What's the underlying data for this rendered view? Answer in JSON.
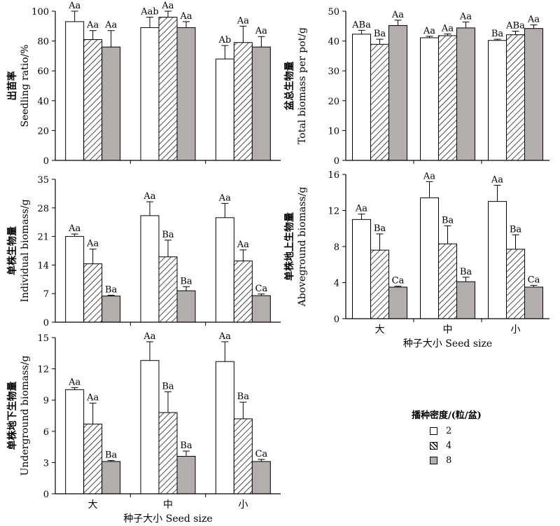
{
  "colors": {
    "d2": "#ffffff",
    "d4": "hatch",
    "d8": "#b3aeab",
    "axis": "#000000"
  },
  "legend": {
    "title": "播种密度/(粒/盆)",
    "items": [
      {
        "label": "2",
        "fill": "#ffffff"
      },
      {
        "label": "4",
        "fill": "hatch"
      },
      {
        "label": "8",
        "fill": "#b3aeab"
      }
    ]
  },
  "chart_data": [
    {
      "type": "bar",
      "ylabel_cn": "出苗率",
      "ylabel_en": "Seedling ratio/%",
      "ylim": [
        0,
        100
      ],
      "yticks": [
        "0",
        "20",
        "40",
        "60",
        "80",
        "100"
      ],
      "categories": [
        "大",
        "中",
        "小"
      ],
      "series": [
        {
          "name": "2",
          "values": [
            93,
            89,
            68
          ],
          "errors": [
            7,
            7,
            9
          ],
          "letters": [
            "Aa",
            "Aab",
            "Ab"
          ]
        },
        {
          "name": "4",
          "values": [
            81,
            96,
            79
          ],
          "errors": [
            6,
            4,
            11
          ],
          "letters": [
            "Aa",
            "Aa",
            "Aa"
          ]
        },
        {
          "name": "8",
          "values": [
            76,
            89,
            76
          ],
          "errors": [
            11,
            4,
            7
          ],
          "letters": [
            "Aa",
            "Aa",
            "Aa"
          ]
        }
      ]
    },
    {
      "type": "bar",
      "ylabel_cn": "盆总生物量",
      "ylabel_en": "Total biomass per pot/g",
      "ylim": [
        0,
        50
      ],
      "yticks": [
        "0",
        "10",
        "20",
        "30",
        "40",
        "50"
      ],
      "categories": [
        "大",
        "中",
        "小"
      ],
      "series": [
        {
          "name": "2",
          "values": [
            42.3,
            41.1,
            40.2
          ],
          "errors": [
            1.3,
            0.5,
            0.4
          ],
          "letters": [
            "ABa",
            "Aa",
            "Ba"
          ]
        },
        {
          "name": "4",
          "values": [
            38.9,
            41.8,
            42.1
          ],
          "errors": [
            1.7,
            0.6,
            1.2
          ],
          "letters": [
            "Ba",
            "Aa",
            "ABa"
          ]
        },
        {
          "name": "8",
          "values": [
            45.2,
            44.4,
            44.2
          ],
          "errors": [
            1.8,
            2.0,
            1.2
          ],
          "letters": [
            "Aa",
            "Aa",
            "Aa"
          ]
        }
      ]
    },
    {
      "type": "bar",
      "ylabel_cn": "单株生物量",
      "ylabel_en": "Individual biomass/g",
      "ylim": [
        0,
        35
      ],
      "yticks": [
        "0",
        "7",
        "14",
        "21",
        "28",
        "35"
      ],
      "categories": [
        "大",
        "中",
        "小"
      ],
      "series": [
        {
          "name": "2",
          "values": [
            21.0,
            26.1,
            25.6
          ],
          "errors": [
            0.6,
            3.4,
            3.5
          ],
          "letters": [
            "Aa",
            "Aa",
            "Aa"
          ]
        },
        {
          "name": "4",
          "values": [
            14.3,
            16.0,
            15.0
          ],
          "errors": [
            3.6,
            4.1,
            2.7
          ],
          "letters": [
            "Aa",
            "Ba",
            "Aa"
          ]
        },
        {
          "name": "8",
          "values": [
            6.4,
            7.7,
            6.5
          ],
          "errors": [
            0.2,
            1.0,
            0.4
          ],
          "letters": [
            "Ba",
            "Ba",
            "Ca"
          ]
        }
      ]
    },
    {
      "type": "bar",
      "ylabel_cn": "单株地上生物量",
      "ylabel_en": "Aboveground biomass/g",
      "ylim": [
        0,
        16
      ],
      "yticks": [
        "0",
        "4",
        "8",
        "12",
        "16"
      ],
      "categories": [
        "大",
        "中",
        "小"
      ],
      "xlabel": "种子大小 Seed size",
      "series": [
        {
          "name": "2",
          "values": [
            11.0,
            13.4,
            13.0
          ],
          "errors": [
            0.6,
            1.8,
            1.8
          ],
          "letters": [
            "Aa",
            "Aa",
            "Aa"
          ]
        },
        {
          "name": "4",
          "values": [
            7.6,
            8.3,
            7.7
          ],
          "errors": [
            1.8,
            2.0,
            1.6
          ],
          "letters": [
            "Ba",
            "Ba",
            "Ba"
          ]
        },
        {
          "name": "8",
          "values": [
            3.5,
            4.1,
            3.5
          ],
          "errors": [
            0.1,
            0.5,
            0.2
          ],
          "letters": [
            "Ca",
            "Ba",
            "Ca"
          ]
        }
      ]
    },
    {
      "type": "bar",
      "ylabel_cn": "单株地下生物量",
      "ylabel_en": "Underground biomass/g",
      "ylim": [
        0,
        15
      ],
      "yticks": [
        "0",
        "3",
        "6",
        "9",
        "12",
        "15"
      ],
      "categories": [
        "大",
        "中",
        "小"
      ],
      "xlabel": "种子大小 Seed size",
      "series": [
        {
          "name": "2",
          "values": [
            10.0,
            12.8,
            12.7
          ],
          "errors": [
            0.2,
            1.8,
            1.9
          ],
          "letters": [
            "Aa",
            "Aa",
            "Aa"
          ]
        },
        {
          "name": "4",
          "values": [
            6.7,
            7.8,
            7.2
          ],
          "errors": [
            2.0,
            2.0,
            1.6
          ],
          "letters": [
            "Aa",
            "Ba",
            "Ba"
          ]
        },
        {
          "name": "8",
          "values": [
            3.1,
            3.6,
            3.1
          ],
          "errors": [
            0.1,
            0.5,
            0.2
          ],
          "letters": [
            "Ba",
            "Ba",
            "Ca"
          ]
        }
      ]
    }
  ]
}
